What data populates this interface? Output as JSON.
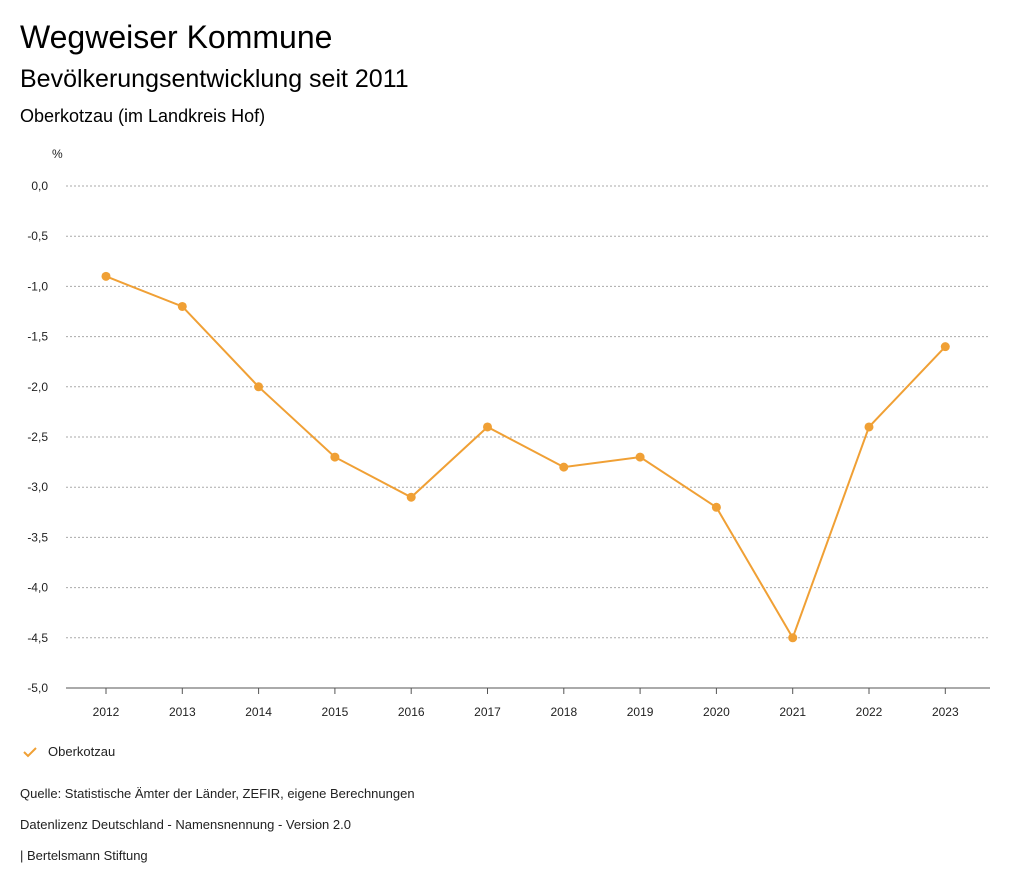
{
  "header": {
    "title": "Wegweiser Kommune",
    "subtitle": "Bevölkerungsentwicklung seit 2011",
    "region": "Oberkotzau (im Landkreis Hof)"
  },
  "chart_data": {
    "type": "line",
    "title": "Bevölkerungsentwicklung seit 2011",
    "ylabel": "%",
    "xlabel": "",
    "categories": [
      "2012",
      "2013",
      "2014",
      "2015",
      "2016",
      "2017",
      "2018",
      "2019",
      "2020",
      "2021",
      "2022",
      "2023"
    ],
    "series": [
      {
        "name": "Oberkotzau",
        "values": [
          -0.9,
          -1.2,
          -2.0,
          -2.7,
          -3.1,
          -2.4,
          -2.8,
          -2.7,
          -3.2,
          -4.5,
          -2.4,
          -1.6
        ]
      }
    ],
    "ylim": [
      -5.0,
      0.0
    ],
    "yticks": [
      0.0,
      -0.5,
      -1.0,
      -1.5,
      -2.0,
      -2.5,
      -3.0,
      -3.5,
      -4.0,
      -4.5,
      -5.0
    ],
    "ytick_labels": [
      "0,0",
      "-0,5",
      "-1,0",
      "-1,5",
      "-2,0",
      "-2,5",
      "-3,0",
      "-3,5",
      "-4,0",
      "-4,5",
      "-5,0"
    ],
    "grid": true,
    "legend_position": "bottom-left"
  },
  "colors": {
    "series": "#f0a035",
    "grid": "#aaaaaa",
    "axis": "#555555"
  },
  "legend": {
    "label": "Oberkotzau",
    "icon": "check-icon"
  },
  "footer": {
    "source": "Quelle: Statistische Ämter der Länder, ZEFIR, eigene Berechnungen",
    "license": "Datenlizenz Deutschland - Namensnennung - Version 2.0",
    "publisher": "| Bertelsmann Stiftung"
  }
}
